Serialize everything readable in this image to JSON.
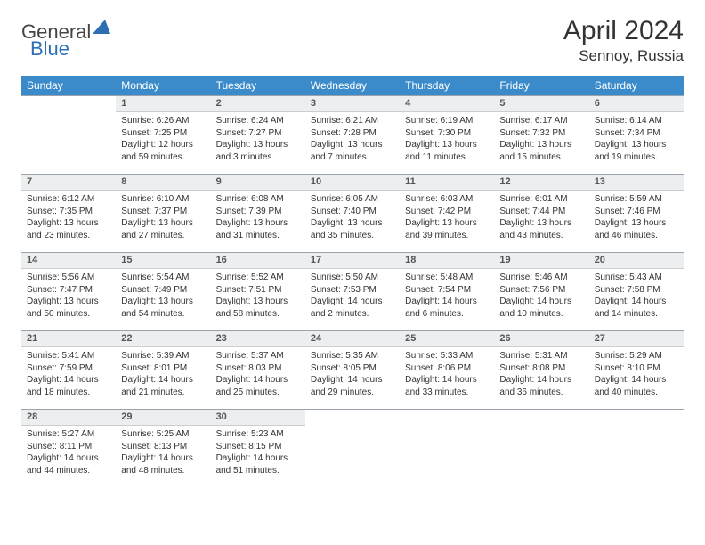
{
  "logo": {
    "general": "General",
    "blue": "Blue"
  },
  "title": "April 2024",
  "location": "Sennoy, Russia",
  "colors": {
    "header_bg": "#3b8bca",
    "header_text": "#ffffff",
    "daynum_bg": "#eceef0",
    "daynum_border_top": "#9aa3ab",
    "daynum_border_bottom": "#c9ced3",
    "text": "#333333",
    "logo_blue": "#2d6fb5",
    "logo_gray": "#444444"
  },
  "weekdays": [
    "Sunday",
    "Monday",
    "Tuesday",
    "Wednesday",
    "Thursday",
    "Friday",
    "Saturday"
  ],
  "weeks": [
    [
      null,
      {
        "n": "1",
        "sr": "Sunrise: 6:26 AM",
        "ss": "Sunset: 7:25 PM",
        "dl": "Daylight: 12 hours and 59 minutes."
      },
      {
        "n": "2",
        "sr": "Sunrise: 6:24 AM",
        "ss": "Sunset: 7:27 PM",
        "dl": "Daylight: 13 hours and 3 minutes."
      },
      {
        "n": "3",
        "sr": "Sunrise: 6:21 AM",
        "ss": "Sunset: 7:28 PM",
        "dl": "Daylight: 13 hours and 7 minutes."
      },
      {
        "n": "4",
        "sr": "Sunrise: 6:19 AM",
        "ss": "Sunset: 7:30 PM",
        "dl": "Daylight: 13 hours and 11 minutes."
      },
      {
        "n": "5",
        "sr": "Sunrise: 6:17 AM",
        "ss": "Sunset: 7:32 PM",
        "dl": "Daylight: 13 hours and 15 minutes."
      },
      {
        "n": "6",
        "sr": "Sunrise: 6:14 AM",
        "ss": "Sunset: 7:34 PM",
        "dl": "Daylight: 13 hours and 19 minutes."
      }
    ],
    [
      {
        "n": "7",
        "sr": "Sunrise: 6:12 AM",
        "ss": "Sunset: 7:35 PM",
        "dl": "Daylight: 13 hours and 23 minutes."
      },
      {
        "n": "8",
        "sr": "Sunrise: 6:10 AM",
        "ss": "Sunset: 7:37 PM",
        "dl": "Daylight: 13 hours and 27 minutes."
      },
      {
        "n": "9",
        "sr": "Sunrise: 6:08 AM",
        "ss": "Sunset: 7:39 PM",
        "dl": "Daylight: 13 hours and 31 minutes."
      },
      {
        "n": "10",
        "sr": "Sunrise: 6:05 AM",
        "ss": "Sunset: 7:40 PM",
        "dl": "Daylight: 13 hours and 35 minutes."
      },
      {
        "n": "11",
        "sr": "Sunrise: 6:03 AM",
        "ss": "Sunset: 7:42 PM",
        "dl": "Daylight: 13 hours and 39 minutes."
      },
      {
        "n": "12",
        "sr": "Sunrise: 6:01 AM",
        "ss": "Sunset: 7:44 PM",
        "dl": "Daylight: 13 hours and 43 minutes."
      },
      {
        "n": "13",
        "sr": "Sunrise: 5:59 AM",
        "ss": "Sunset: 7:46 PM",
        "dl": "Daylight: 13 hours and 46 minutes."
      }
    ],
    [
      {
        "n": "14",
        "sr": "Sunrise: 5:56 AM",
        "ss": "Sunset: 7:47 PM",
        "dl": "Daylight: 13 hours and 50 minutes."
      },
      {
        "n": "15",
        "sr": "Sunrise: 5:54 AM",
        "ss": "Sunset: 7:49 PM",
        "dl": "Daylight: 13 hours and 54 minutes."
      },
      {
        "n": "16",
        "sr": "Sunrise: 5:52 AM",
        "ss": "Sunset: 7:51 PM",
        "dl": "Daylight: 13 hours and 58 minutes."
      },
      {
        "n": "17",
        "sr": "Sunrise: 5:50 AM",
        "ss": "Sunset: 7:53 PM",
        "dl": "Daylight: 14 hours and 2 minutes."
      },
      {
        "n": "18",
        "sr": "Sunrise: 5:48 AM",
        "ss": "Sunset: 7:54 PM",
        "dl": "Daylight: 14 hours and 6 minutes."
      },
      {
        "n": "19",
        "sr": "Sunrise: 5:46 AM",
        "ss": "Sunset: 7:56 PM",
        "dl": "Daylight: 14 hours and 10 minutes."
      },
      {
        "n": "20",
        "sr": "Sunrise: 5:43 AM",
        "ss": "Sunset: 7:58 PM",
        "dl": "Daylight: 14 hours and 14 minutes."
      }
    ],
    [
      {
        "n": "21",
        "sr": "Sunrise: 5:41 AM",
        "ss": "Sunset: 7:59 PM",
        "dl": "Daylight: 14 hours and 18 minutes."
      },
      {
        "n": "22",
        "sr": "Sunrise: 5:39 AM",
        "ss": "Sunset: 8:01 PM",
        "dl": "Daylight: 14 hours and 21 minutes."
      },
      {
        "n": "23",
        "sr": "Sunrise: 5:37 AM",
        "ss": "Sunset: 8:03 PM",
        "dl": "Daylight: 14 hours and 25 minutes."
      },
      {
        "n": "24",
        "sr": "Sunrise: 5:35 AM",
        "ss": "Sunset: 8:05 PM",
        "dl": "Daylight: 14 hours and 29 minutes."
      },
      {
        "n": "25",
        "sr": "Sunrise: 5:33 AM",
        "ss": "Sunset: 8:06 PM",
        "dl": "Daylight: 14 hours and 33 minutes."
      },
      {
        "n": "26",
        "sr": "Sunrise: 5:31 AM",
        "ss": "Sunset: 8:08 PM",
        "dl": "Daylight: 14 hours and 36 minutes."
      },
      {
        "n": "27",
        "sr": "Sunrise: 5:29 AM",
        "ss": "Sunset: 8:10 PM",
        "dl": "Daylight: 14 hours and 40 minutes."
      }
    ],
    [
      {
        "n": "28",
        "sr": "Sunrise: 5:27 AM",
        "ss": "Sunset: 8:11 PM",
        "dl": "Daylight: 14 hours and 44 minutes."
      },
      {
        "n": "29",
        "sr": "Sunrise: 5:25 AM",
        "ss": "Sunset: 8:13 PM",
        "dl": "Daylight: 14 hours and 48 minutes."
      },
      {
        "n": "30",
        "sr": "Sunrise: 5:23 AM",
        "ss": "Sunset: 8:15 PM",
        "dl": "Daylight: 14 hours and 51 minutes."
      },
      null,
      null,
      null,
      null
    ]
  ]
}
